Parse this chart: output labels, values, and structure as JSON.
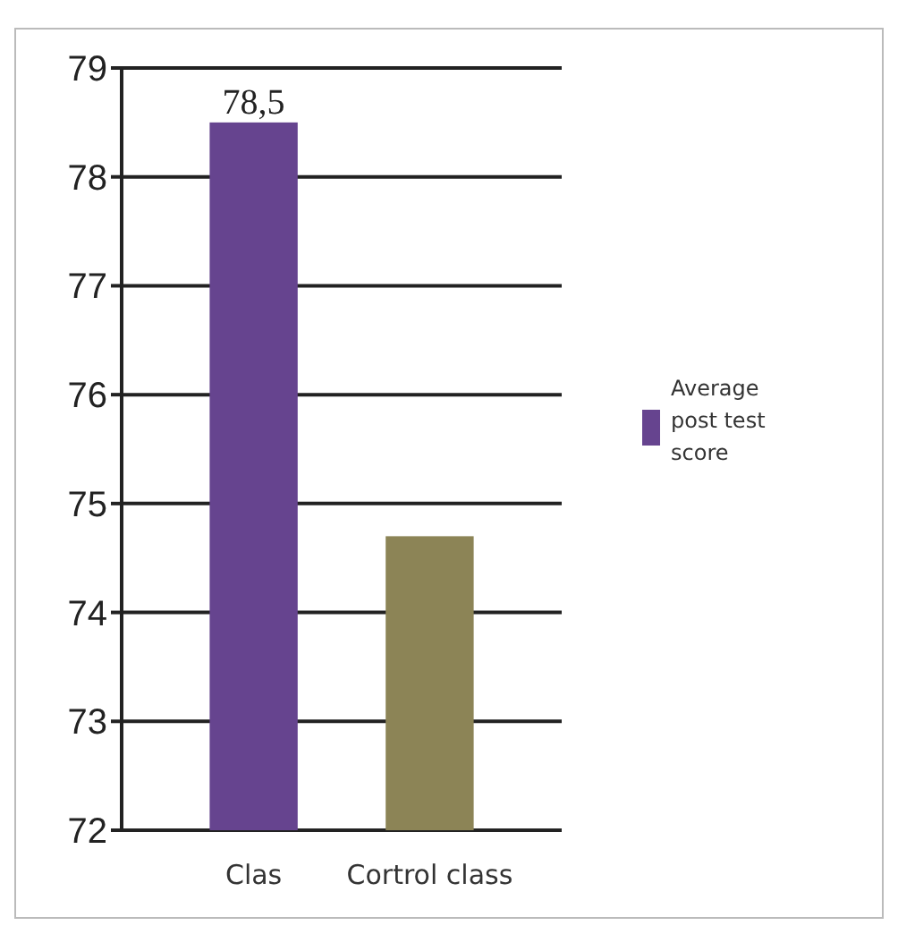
{
  "chart_data": {
    "type": "bar",
    "categories": [
      "Clas",
      "Cortrol class"
    ],
    "series": [
      {
        "name": "Average post test score",
        "color": "#66448f",
        "colors": [
          "#66448f",
          "#8c8456"
        ],
        "values": [
          78.5,
          74.7
        ],
        "value_labels": [
          "78,5",
          null
        ]
      }
    ],
    "ylim": [
      72,
      79
    ],
    "yticks": [
      72,
      73,
      74,
      75,
      76,
      77,
      78,
      79
    ],
    "grid": "y",
    "legend": "right"
  }
}
